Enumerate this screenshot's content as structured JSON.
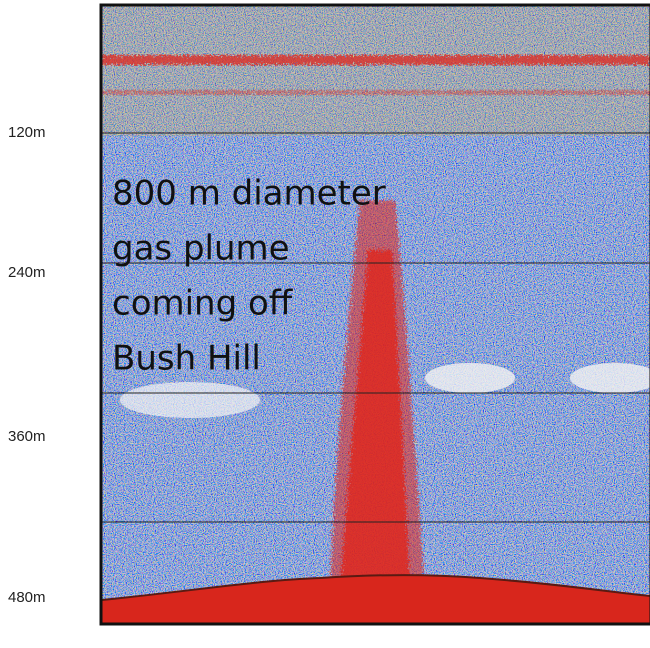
{
  "depth_labels": [
    "120m",
    "240m",
    "360m",
    "480m"
  ],
  "annotation": {
    "lines": [
      "800 m diameter",
      "gas plume",
      "coming off",
      "Bush Hill"
    ]
  }
}
